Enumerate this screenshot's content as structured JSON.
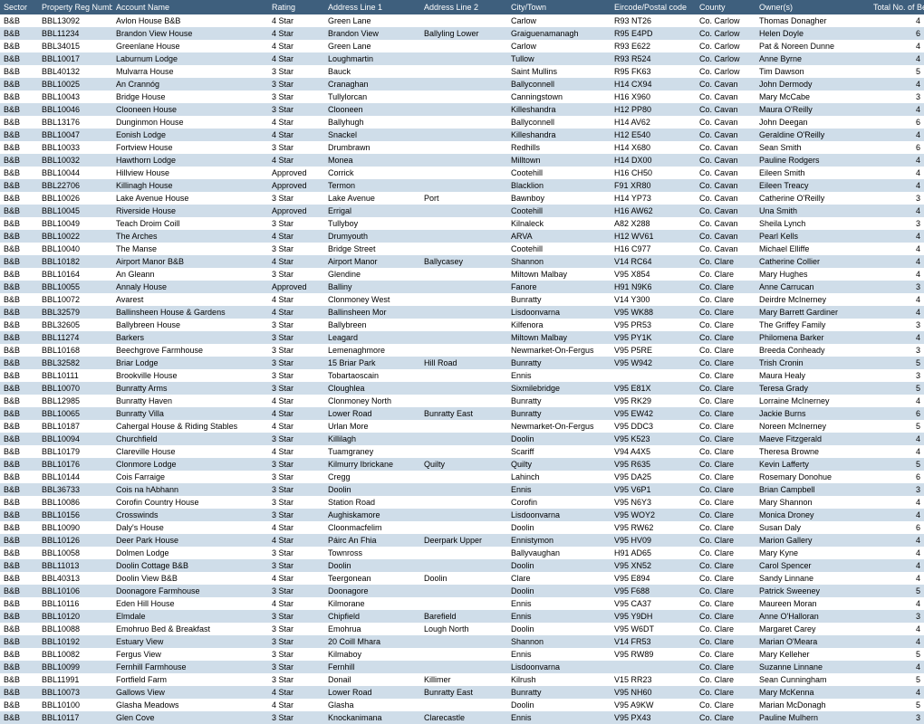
{
  "columns": [
    "Sector",
    "Property Reg Number",
    "Account Name",
    "Rating",
    "Address Line 1",
    "Address Line 2",
    "City/Town",
    "Eircode/Postal code",
    "County",
    "Owner(s)",
    "Total No. of Bedrooms"
  ],
  "rows": [
    [
      "B&B",
      "BBL13092",
      "Avlon House B&B",
      "4 Star",
      "Green Lane",
      "",
      "Carlow",
      "R93 NT26",
      "Co. Carlow",
      "Thomas Donagher",
      "4"
    ],
    [
      "B&B",
      "BBL11234",
      "Brandon View House",
      "4 Star",
      "Brandon View",
      "Ballyling Lower",
      "Graiguenamanagh",
      "R95 E4PD",
      "Co. Carlow",
      "Helen Doyle",
      "6"
    ],
    [
      "B&B",
      "BBL34015",
      "Greenlane House",
      "4 Star",
      "Green Lane",
      "",
      "Carlow",
      "R93 E622",
      "Co. Carlow",
      "Pat & Noreen Dunne",
      "4"
    ],
    [
      "B&B",
      "BBL10017",
      "Laburnum Lodge",
      "4 Star",
      "Loughmartin",
      "",
      "Tullow",
      "R93 R524",
      "Co. Carlow",
      "Anne Byrne",
      "4"
    ],
    [
      "B&B",
      "BBL40132",
      "Mulvarra House",
      "3 Star",
      "Bauck",
      "",
      "Saint Mullins",
      "R95 FK63",
      "Co. Carlow",
      "Tim Dawson",
      "5"
    ],
    [
      "B&B",
      "BBL10025",
      "An Crannóg",
      "3 Star",
      "Cranaghan",
      "",
      "Ballyconnell",
      "H14 CX94",
      "Co. Cavan",
      "John Dermody",
      "4"
    ],
    [
      "B&B",
      "BBL10043",
      "Bridge House",
      "3 Star",
      "Tullylorcan",
      "",
      "Canningstown",
      "H16 X960",
      "Co. Cavan",
      "Mary McCabe",
      "3"
    ],
    [
      "B&B",
      "BBL10046",
      "Clooneen House",
      "3 Star",
      "Clooneen",
      "",
      "Killeshandra",
      "H12 PP80",
      "Co. Cavan",
      "Maura O'Reilly",
      "4"
    ],
    [
      "B&B",
      "BBL13176",
      "Dunginmon House",
      "4 Star",
      "Ballyhugh",
      "",
      "Ballyconnell",
      "H14 AV62",
      "Co. Cavan",
      "John Deegan",
      "6"
    ],
    [
      "B&B",
      "BBL10047",
      "Eonish Lodge",
      "4 Star",
      "Snackel",
      "",
      "Killeshandra",
      "H12 E540",
      "Co. Cavan",
      "Geraldine O'Reilly",
      "4"
    ],
    [
      "B&B",
      "BBL10033",
      "Fortview House",
      "3 Star",
      "Drumbrawn",
      "",
      "Redhills",
      "H14 X680",
      "Co. Cavan",
      "Sean Smith",
      "6"
    ],
    [
      "B&B",
      "BBL10032",
      "Hawthorn Lodge",
      "4 Star",
      "Monea",
      "",
      "Milltown",
      "H14 DX00",
      "Co. Cavan",
      "Pauline Rodgers",
      "4"
    ],
    [
      "B&B",
      "BBL10044",
      "Hillview House",
      "Approved",
      "Corrick",
      "",
      "Cootehill",
      "H16 CH50",
      "Co. Cavan",
      "Eileen Smith",
      "4"
    ],
    [
      "B&B",
      "BBL22706",
      "Killinagh House",
      "Approved",
      "Termon",
      "",
      "Blacklion",
      "F91 XR80",
      "Co. Cavan",
      "Eileen Treacy",
      "4"
    ],
    [
      "B&B",
      "BBL10026",
      "Lake Avenue House",
      "3 Star",
      "Lake Avenue",
      "Port",
      "Bawnboy",
      "H14 YP73",
      "Co. Cavan",
      "Catherine O'Reilly",
      "3"
    ],
    [
      "B&B",
      "BBL10045",
      "Riverside House",
      "Approved",
      "Errigal",
      "",
      "Cootehill",
      "H16 AW62",
      "Co. Cavan",
      "Una Smith",
      "4"
    ],
    [
      "B&B",
      "BBL10049",
      "Teach Droim Coill",
      "3 Star",
      "Tullyboy",
      "",
      "Kilnaleck",
      "A82 X288",
      "Co. Cavan",
      "Sheila Lynch",
      "3"
    ],
    [
      "B&B",
      "BBL10022",
      "The Arches",
      "4 Star",
      "Drumyouth",
      "",
      "ARVA",
      "H12 WV61",
      "Co. Cavan",
      "Pearl Kells",
      "4"
    ],
    [
      "B&B",
      "BBL10040",
      "The Manse",
      "3 Star",
      "Bridge Street",
      "",
      "Cootehill",
      "H16 C977",
      "Co. Cavan",
      "Michael Elliffe",
      "4"
    ],
    [
      "B&B",
      "BBL10182",
      "Airport Manor B&B",
      "4 Star",
      "Airport Manor",
      "Ballycasey",
      "Shannon",
      "V14 RC64",
      "Co. Clare",
      "Catherine Collier",
      "4"
    ],
    [
      "B&B",
      "BBL10164",
      "An Gleann",
      "3 Star",
      "Glendine",
      "",
      "Miltown Malbay",
      "V95 X854",
      "Co. Clare",
      "Mary Hughes",
      "4"
    ],
    [
      "B&B",
      "BBL10055",
      "Annaly House",
      "Approved",
      "Balliny",
      "",
      "Fanore",
      "H91 N9K6",
      "Co. Clare",
      "Anne Carrucan",
      "3"
    ],
    [
      "B&B",
      "BBL10072",
      "Avarest",
      "4 Star",
      "Clonmoney West",
      "",
      "Bunratty",
      "V14 Y300",
      "Co. Clare",
      "Deirdre McInerney",
      "4"
    ],
    [
      "B&B",
      "BBL32579",
      "Ballinsheen House & Gardens",
      "4 Star",
      "Ballinsheen Mor",
      "",
      "Lisdoonvarna",
      "V95 WK88",
      "Co. Clare",
      "Mary Barrett Gardiner",
      "4"
    ],
    [
      "B&B",
      "BBL32605",
      "Ballybreen House",
      "3 Star",
      "Ballybreen",
      "",
      "Kilfenora",
      "V95 PR53",
      "Co. Clare",
      "The Griffey Family",
      "3"
    ],
    [
      "B&B",
      "BBL11274",
      "Barkers",
      "3 Star",
      "Leagard",
      "",
      "Miltown Malbay",
      "V95 PY1K",
      "Co. Clare",
      "Philomena Barker",
      "4"
    ],
    [
      "B&B",
      "BBL10168",
      "Beechgrove Farmhouse",
      "3 Star",
      "Lemenaghmore",
      "",
      "Newmarket-On-Fergus",
      "V95 P5RE",
      "Co. Clare",
      "Breeda Conheady",
      "3"
    ],
    [
      "B&B",
      "BBL32582",
      "Briar Lodge",
      "3 Star",
      "15 Briar Park",
      "Hill Road",
      "Bunratty",
      "V95 W942",
      "Co. Clare",
      "Trish Cronin",
      "5"
    ],
    [
      "B&B",
      "BBL10111",
      "Brookville House",
      "3 Star",
      "Tobartaoscain",
      "",
      "Ennis",
      "",
      "Co. Clare",
      "Maura Healy",
      "3"
    ],
    [
      "B&B",
      "BBL10070",
      "Bunratty Arms",
      "3 Star",
      "Cloughlea",
      "",
      "Sixmilebridge",
      "V95 E81X",
      "Co. Clare",
      "Teresa Grady",
      "5"
    ],
    [
      "B&B",
      "BBL12985",
      "Bunratty Haven",
      "4 Star",
      "Clonmoney North",
      "",
      "Bunratty",
      "V95 RK29",
      "Co. Clare",
      "Lorraine McInerney",
      "4"
    ],
    [
      "B&B",
      "BBL10065",
      "Bunratty Villa",
      "4 Star",
      "Lower Road",
      "Bunratty East",
      "Bunratty",
      "V95 EW42",
      "Co. Clare",
      "Jackie Burns",
      "6"
    ],
    [
      "B&B",
      "BBL10187",
      "Cahergal House & Riding Stables",
      "4 Star",
      "Urlan More",
      "",
      "Newmarket-On-Fergus",
      "V95 DDC3",
      "Co. Clare",
      "Noreen McInerney",
      "5"
    ],
    [
      "B&B",
      "BBL10094",
      "Churchfield",
      "3 Star",
      "Killilagh",
      "",
      "Doolin",
      "V95 K523",
      "Co. Clare",
      "Maeve Fitzgerald",
      "4"
    ],
    [
      "B&B",
      "BBL10179",
      "Clareville House",
      "4 Star",
      "Tuamgraney",
      "",
      "Scariff",
      "V94 A4X5",
      "Co. Clare",
      "Theresa Browne",
      "4"
    ],
    [
      "B&B",
      "BBL10176",
      "Clonmore Lodge",
      "3 Star",
      "Kilmurry Ibrickane",
      "Quilty",
      "Quilty",
      "V95 R635",
      "Co. Clare",
      "Kevin Lafferty",
      "5"
    ],
    [
      "B&B",
      "BBL10144",
      "Cois Farraige",
      "3 Star",
      "Cregg",
      "",
      "Lahinch",
      "V95 DA25",
      "Co. Clare",
      "Rosemary Donohue",
      "6"
    ],
    [
      "B&B",
      "BBL36733",
      "Cois na hAbhann",
      "3 Star",
      "Doolin",
      "",
      "Ennis",
      "V95 V6P1",
      "Co. Clare",
      "Brian Campbell",
      "3"
    ],
    [
      "B&B",
      "BBL10086",
      "Corofin Country House",
      "3 Star",
      "Station Road",
      "",
      "Corofin",
      "V95 N6Y3",
      "Co. Clare",
      "Mary Shannon",
      "4"
    ],
    [
      "B&B",
      "BBL10156",
      "Crosswinds",
      "3 Star",
      "Aughiskamore",
      "",
      "Lisdoonvarna",
      "V95 WOY2",
      "Co. Clare",
      "Monica Droney",
      "4"
    ],
    [
      "B&B",
      "BBL10090",
      "Daly's House",
      "4 Star",
      "Cloonmacfelim",
      "",
      "Doolin",
      "V95 RW62",
      "Co. Clare",
      "Susan Daly",
      "6"
    ],
    [
      "B&B",
      "BBL10126",
      "Deer Park House",
      "4 Star",
      "Páirc An Fhia",
      "Deerpark Upper",
      "Ennistymon",
      "V95 HV09",
      "Co. Clare",
      "Marion Gallery",
      "4"
    ],
    [
      "B&B",
      "BBL10058",
      "Dolmen Lodge",
      "3 Star",
      "Townross",
      "",
      "Ballyvaughan",
      "H91 AD65",
      "Co. Clare",
      "Mary Kyne",
      "4"
    ],
    [
      "B&B",
      "BBL11013",
      "Doolin Cottage B&B",
      "3 Star",
      "Doolin",
      "",
      "Doolin",
      "V95 XN52",
      "Co. Clare",
      "Carol Spencer",
      "4"
    ],
    [
      "B&B",
      "BBL40313",
      "Doolin View B&B",
      "4 Star",
      "Teergonean",
      "Doolin",
      "Clare",
      "V95 E894",
      "Co. Clare",
      "Sandy Linnane",
      "4"
    ],
    [
      "B&B",
      "BBL10106",
      "Doonagore Farmhouse",
      "3 Star",
      "Doonagore",
      "",
      "Doolin",
      "V95 F688",
      "Co. Clare",
      "Patrick Sweeney",
      "5"
    ],
    [
      "B&B",
      "BBL10116",
      "Eden Hill House",
      "4 Star",
      "Kilmorane",
      "",
      "Ennis",
      "V95 CA37",
      "Co. Clare",
      "Maureen Moran",
      "4"
    ],
    [
      "B&B",
      "BBL10120",
      "Elmdale",
      "3 Star",
      "Chipfield",
      "Barefield",
      "Ennis",
      "V95 Y9DH",
      "Co. Clare",
      "Anne O'Halloran",
      "3"
    ],
    [
      "B&B",
      "BBL10088",
      "Emohruo Bed & Breakfast",
      "3 Star",
      "Emohrua",
      "Lough North",
      "Doolin",
      "V95 W6DT",
      "Co. Clare",
      "Margaret Carey",
      "4"
    ],
    [
      "B&B",
      "BBL10192",
      "Estuary View",
      "3 Star",
      "20 Coill Mhara",
      "",
      "Shannon",
      "V14 FR53",
      "Co. Clare",
      "Marian O'Meara",
      "4"
    ],
    [
      "B&B",
      "BBL10082",
      "Fergus View",
      "3 Star",
      "Kilmaboy",
      "",
      "Ennis",
      "V95 RW89",
      "Co. Clare",
      "Mary Kelleher",
      "5"
    ],
    [
      "B&B",
      "BBL10099",
      "Fernhill Farmhouse",
      "3 Star",
      "Fernhill",
      "",
      "Lisdoonvarna",
      "",
      "Co. Clare",
      "Suzanne Linnane",
      "4"
    ],
    [
      "B&B",
      "BBL11991",
      "Fortfield Farm",
      "3 Star",
      "Donail",
      "Killimer",
      "Kilrush",
      "V15 RR23",
      "Co. Clare",
      "Sean Cunningham",
      "5"
    ],
    [
      "B&B",
      "BBL10073",
      "Gallows View",
      "4 Star",
      "Lower Road",
      "Bunratty East",
      "Bunratty",
      "V95 NH60",
      "Co. Clare",
      "Mary McKenna",
      "4"
    ],
    [
      "B&B",
      "BBL10100",
      "Glasha Meadows",
      "4 Star",
      "Glasha",
      "",
      "Doolin",
      "V95 A9KW",
      "Co. Clare",
      "Marian McDonagh",
      "5"
    ],
    [
      "B&B",
      "BBL10117",
      "Glen Cove",
      "3 Star",
      "Knockanimana",
      "Clarecastle",
      "Ennis",
      "V95 PX43",
      "Co. Clare",
      "Pauline Mulhern",
      "3"
    ]
  ]
}
